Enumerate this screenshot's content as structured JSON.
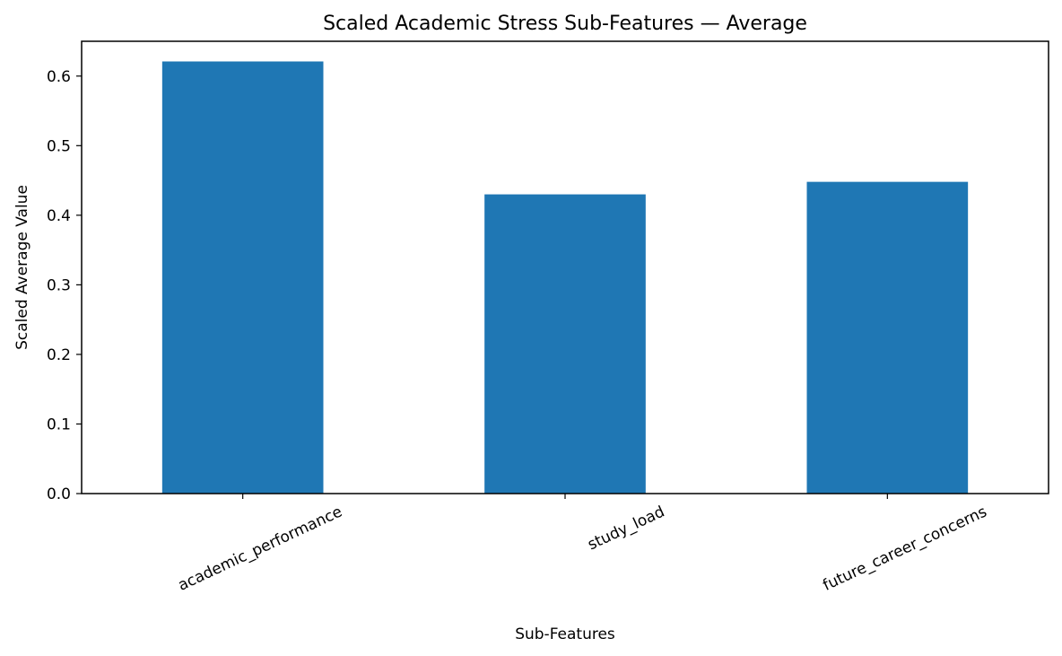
{
  "chart_data": {
    "type": "bar",
    "title": "Scaled Academic Stress Sub-Features — Average",
    "xlabel": "Sub-Features",
    "ylabel": "Scaled Average Value",
    "categories": [
      "academic_performance",
      "study_load",
      "future_career_concerns"
    ],
    "values": [
      0.621,
      0.43,
      0.448
    ],
    "ylim": [
      0,
      0.65
    ],
    "yticks": [
      "0.0",
      "0.1",
      "0.2",
      "0.3",
      "0.4",
      "0.5",
      "0.6"
    ],
    "grid": false,
    "bar_color": "#1f77b4"
  }
}
